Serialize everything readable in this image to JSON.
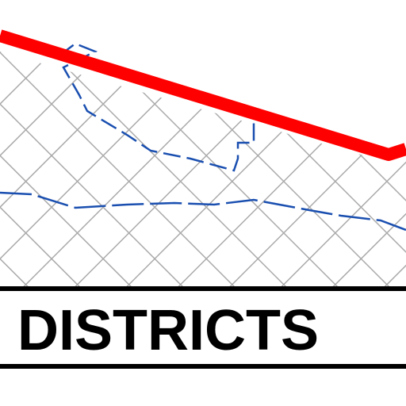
{
  "label": "DISTRICTS"
}
